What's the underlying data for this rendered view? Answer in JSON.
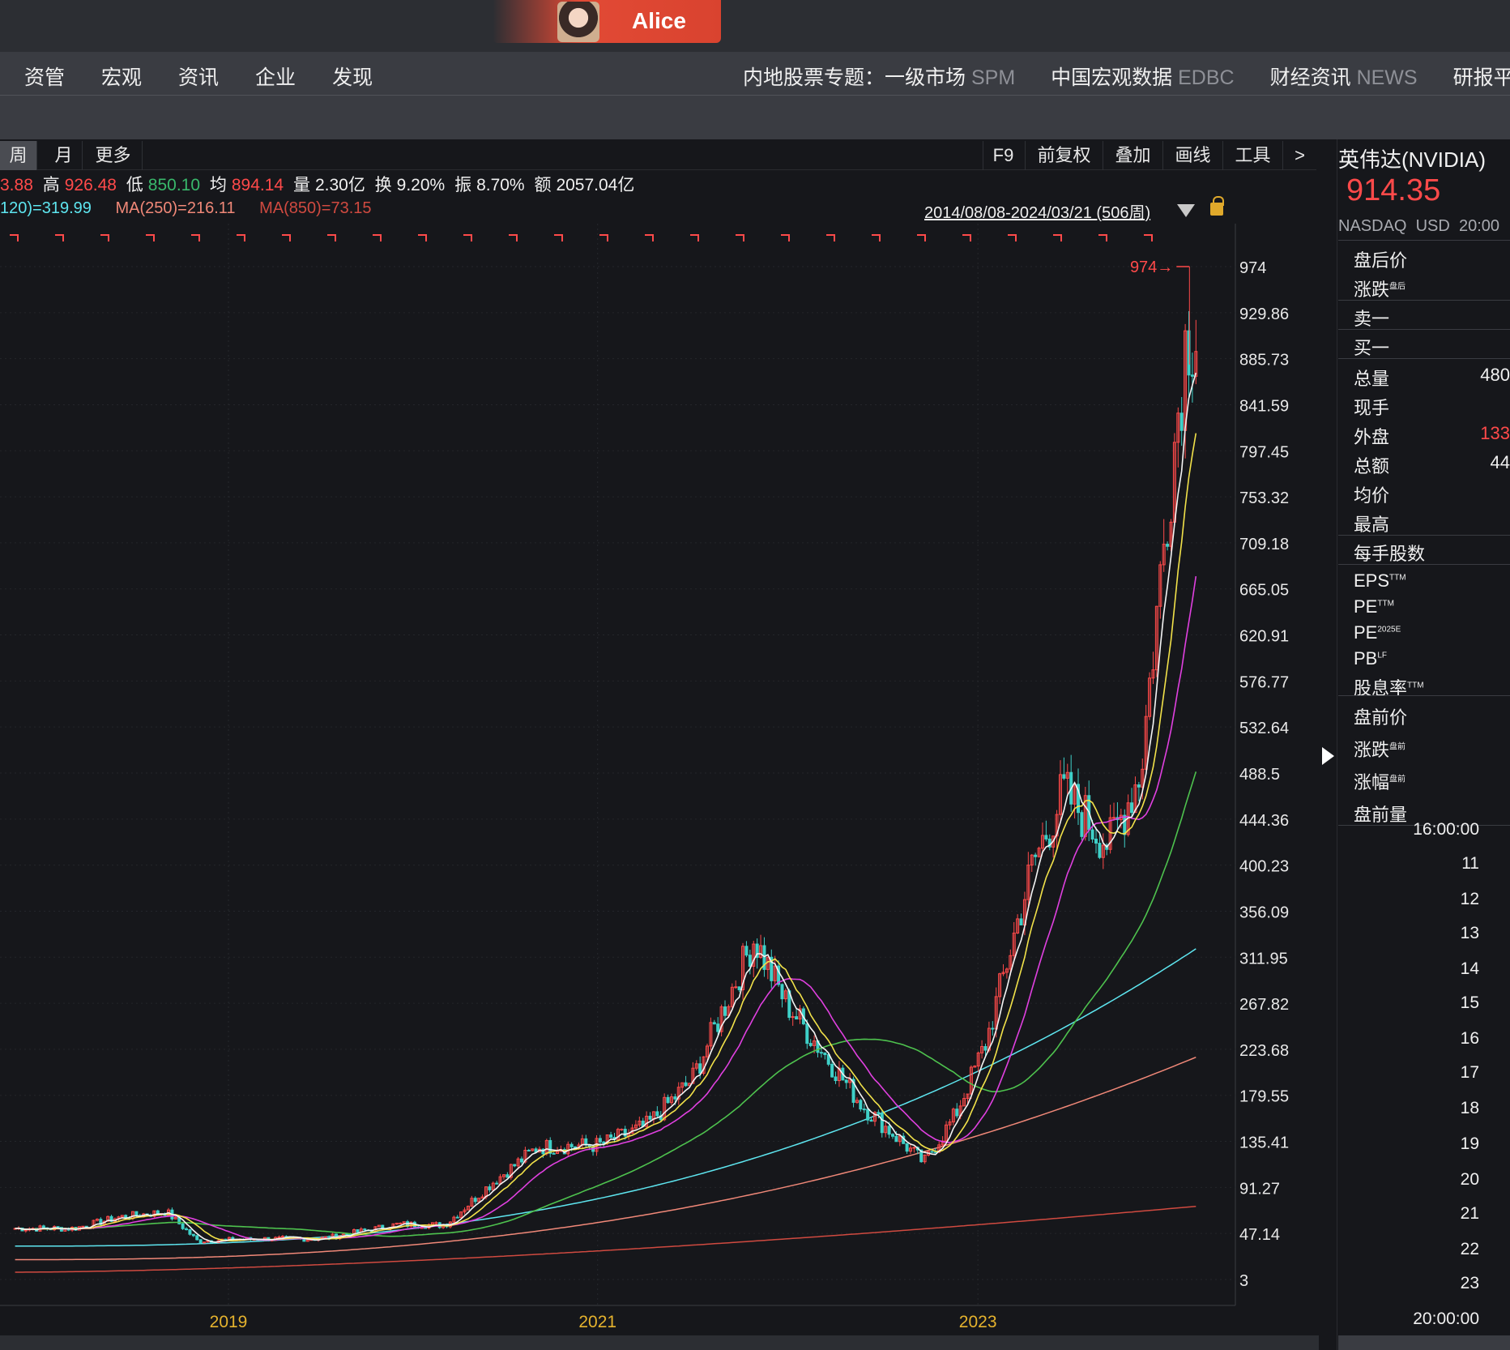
{
  "top": {
    "user_name": "Alice"
  },
  "nav": {
    "left": [
      "资管",
      "宏观",
      "资讯",
      "企业",
      "发现"
    ],
    "right": [
      {
        "cn": "内地股票专题：一级市场",
        "en": "SPM"
      },
      {
        "cn": "中国宏观数据",
        "en": "EDBC"
      },
      {
        "cn": "财经资讯",
        "en": "NEWS"
      },
      {
        "cn": "研报平",
        "en": ""
      }
    ]
  },
  "toolbar": {
    "tabs": [
      "周",
      "月",
      "更多"
    ],
    "tools": [
      "F9",
      "前复权",
      "叠加",
      "画线",
      "工具",
      ">"
    ]
  },
  "quote": {
    "open_partial": "3.88",
    "high_label": "高",
    "high": "926.48",
    "low_label": "低",
    "low": "850.10",
    "avg_label": "均",
    "avg": "894.14",
    "vol_label": "量",
    "vol": "2.30亿",
    "turn_label": "换",
    "turn": "9.20%",
    "amp_label": "振",
    "amp": "8.70%",
    "amt_label": "额",
    "amt": "2057.04亿"
  },
  "ma": {
    "ma120": "120)=319.99",
    "ma250": "MA(250)=216.11",
    "ma850": "MA(850)=73.15"
  },
  "range_label": "2014/08/08-2024/03/21 (506周)",
  "colors": {
    "up": "#ff4a4a",
    "down": "#3fd0c8",
    "ma5": "#f4f4f4",
    "ma10": "#f2e24a",
    "ma20": "#e040e0",
    "ma60": "#4ec24e",
    "ma120": "#5ee6f0",
    "ma250": "#f08878",
    "ma850": "#d04a40"
  },
  "chart_data": {
    "type": "candlestick",
    "title": "",
    "peak_label": "974",
    "y_ticks": [
      "974",
      "929.86",
      "885.73",
      "841.59",
      "797.45",
      "753.32",
      "709.18",
      "665.05",
      "620.91",
      "576.77",
      "532.64",
      "488.5",
      "444.36",
      "400.23",
      "356.09",
      "311.95",
      "267.82",
      "223.68",
      "179.55",
      "135.41",
      "91.27",
      "47.14",
      "3"
    ],
    "ylim": [
      3,
      974
    ],
    "x_ticks": [
      "2019",
      "2021",
      "2023"
    ],
    "price_path": [
      [
        "2018-03",
        52
      ],
      [
        "2018-06",
        63
      ],
      [
        "2018-09",
        68
      ],
      [
        "2018-11",
        40
      ],
      [
        "2019-03",
        42
      ],
      [
        "2019-07",
        42
      ],
      [
        "2019-12",
        56
      ],
      [
        "2020-03",
        55
      ],
      [
        "2020-06",
        95
      ],
      [
        "2020-09",
        130
      ],
      [
        "2021-01",
        132
      ],
      [
        "2021-04",
        150
      ],
      [
        "2021-07",
        195
      ],
      [
        "2021-11",
        330
      ],
      [
        "2022-01",
        270
      ],
      [
        "2022-04",
        210
      ],
      [
        "2022-06",
        170
      ],
      [
        "2022-10",
        115
      ],
      [
        "2022-12",
        160
      ],
      [
        "2023-02",
        230
      ],
      [
        "2023-05",
        400
      ],
      [
        "2023-07",
        470
      ],
      [
        "2023-10",
        420
      ],
      [
        "2023-12",
        490
      ],
      [
        "2024-02",
        780
      ],
      [
        "2024-03",
        914
      ]
    ],
    "ma": [
      {
        "name": "MA(120)",
        "end": 319.99
      },
      {
        "name": "MA(250)",
        "end": 216.11
      },
      {
        "name": "MA(850)",
        "end": 73.15
      }
    ]
  },
  "panel": {
    "title": "英伟达(NVIDIA)",
    "price": "914.35",
    "exchange": "NASDAQ",
    "currency": "USD",
    "time": "20:00",
    "rows": [
      {
        "label": "盘后价",
        "sup": "",
        "value": ""
      },
      {
        "label": "涨跌",
        "sup": "盘后",
        "value": ""
      },
      {
        "label": "卖一",
        "sup": "",
        "value": ""
      },
      {
        "label": "买一",
        "sup": "",
        "value": ""
      },
      {
        "label": "总量",
        "sup": "",
        "value": "480"
      },
      {
        "label": "现手",
        "sup": "",
        "value": ""
      },
      {
        "label": "外盘",
        "sup": "",
        "value": "133"
      },
      {
        "label": "总额",
        "sup": "",
        "value": "44"
      },
      {
        "label": "均价",
        "sup": "",
        "value": ""
      },
      {
        "label": "最高",
        "sup": "",
        "value": ""
      },
      {
        "label": "每手股数",
        "sup": "",
        "value": ""
      },
      {
        "label": "EPS",
        "sup": "TTM",
        "value": ""
      },
      {
        "label": "PE",
        "sup": "TTM",
        "value": ""
      },
      {
        "label": "PE",
        "sup": "2025E",
        "value": ""
      },
      {
        "label": "PB",
        "sup": "LF",
        "value": ""
      },
      {
        "label": "股息率",
        "sup": "TTM",
        "value": ""
      },
      {
        "label": "盘前价",
        "sup": "",
        "value": ""
      },
      {
        "label": "涨跌",
        "sup": "盘前",
        "value": ""
      },
      {
        "label": "涨幅",
        "sup": "盘前",
        "value": ""
      },
      {
        "label": "盘前量",
        "sup": "",
        "value": ""
      }
    ],
    "times": [
      "16:00:00",
      "11",
      "12",
      "13",
      "14",
      "15",
      "16",
      "17",
      "18",
      "19",
      "20",
      "21",
      "22",
      "23",
      "20:00:00"
    ]
  }
}
